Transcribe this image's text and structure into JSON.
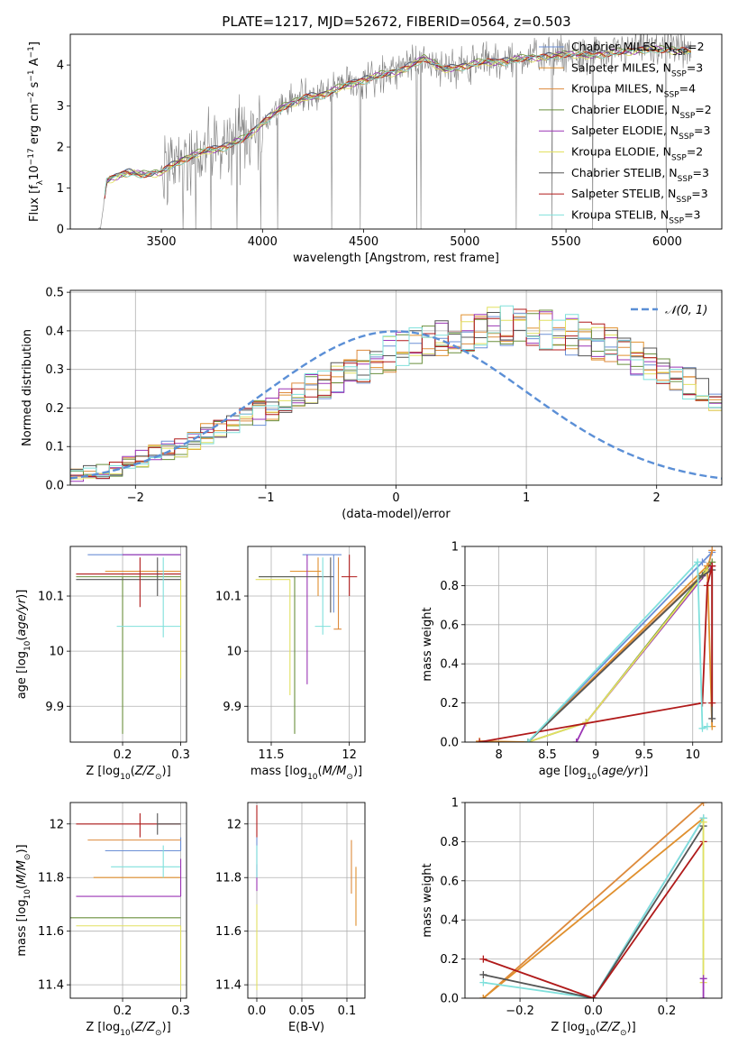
{
  "figure": {
    "title": "PLATE=1217, MJD=52672, FIBERID=0564, z=0.503",
    "colors": {
      "MILES_Chabrier": "#6b8fd6",
      "MILES_Salpeter": "#e0902e",
      "MILES_Kroupa": "#dd8a3c",
      "ELODIE_Chabrier": "#6a8f3c",
      "ELODIE_Salpeter": "#9b35b5",
      "ELODIE_Kroupa": "#e2e060",
      "STELIB_Chabrier": "#555555",
      "STELIB_Salpeter": "#b01a1a",
      "STELIB_Kroupa": "#80e0dc",
      "data": "#808080",
      "normal": "#5b8fd6"
    }
  },
  "chart_data": [
    {
      "type": "line",
      "id": "spectrum",
      "xlabel": "wavelength [Angstrom, rest frame]",
      "ylabel": "Flux [f_λ 10^{-17} erg cm^{-2} s^{-1} A^{-1}]",
      "xlim": [
        3050,
        6270
      ],
      "ylim": [
        0,
        4.75
      ],
      "xticks": [
        3500,
        4000,
        4500,
        5000,
        5500,
        6000
      ],
      "yticks": [
        0,
        1,
        2,
        3,
        4
      ],
      "grid": false,
      "legend_position": "top-right",
      "continuum_x": [
        3200,
        3230,
        3300,
        3350,
        3400,
        3500,
        3600,
        3700,
        3800,
        3900,
        4000,
        4100,
        4200,
        4300,
        4400,
        4500,
        4600,
        4700,
        4800,
        4900,
        5000,
        5100,
        5200,
        5300,
        5400,
        5500,
        5600,
        5700,
        5800,
        5900,
        6000,
        6100
      ],
      "continuum_y": [
        0,
        1.2,
        1.35,
        1.4,
        1.35,
        1.4,
        1.7,
        1.9,
        2.0,
        2.2,
        2.6,
        3.0,
        3.2,
        3.3,
        3.5,
        3.65,
        3.8,
        3.9,
        4.2,
        3.9,
        4.0,
        4.1,
        4.1,
        4.2,
        4.2,
        4.3,
        4.25,
        4.3,
        4.35,
        4.4,
        4.4,
        4.35
      ],
      "series": [
        {
          "name": "Chabrier MILES, N_SSP=2",
          "label": "Chabrier MILES, N",
          "nssp": "=2",
          "colorKey": "MILES_Chabrier"
        },
        {
          "name": "Salpeter MILES, N_SSP=3",
          "label": "Salpeter MILES, N",
          "nssp": "=3",
          "colorKey": "MILES_Salpeter"
        },
        {
          "name": "Kroupa MILES, N_SSP=4",
          "label": "Kroupa MILES, N",
          "nssp": "=4",
          "colorKey": "MILES_Kroupa"
        },
        {
          "name": "Chabrier ELODIE, N_SSP=2",
          "label": "Chabrier ELODIE, N",
          "nssp": "=2",
          "colorKey": "ELODIE_Chabrier"
        },
        {
          "name": "Salpeter ELODIE, N_SSP=3",
          "label": "Salpeter ELODIE, N",
          "nssp": "=3",
          "colorKey": "ELODIE_Salpeter"
        },
        {
          "name": "Kroupa ELODIE, N_SSP=2",
          "label": "Kroupa ELODIE, N",
          "nssp": "=2",
          "colorKey": "ELODIE_Kroupa"
        },
        {
          "name": "Chabrier STELIB, N_SSP=3",
          "label": "Chabrier STELIB, N",
          "nssp": "=3",
          "colorKey": "STELIB_Chabrier"
        },
        {
          "name": "Salpeter STELIB, N_SSP=3",
          "label": "Salpeter STELIB, N",
          "nssp": "=3",
          "colorKey": "STELIB_Salpeter"
        },
        {
          "name": "Kroupa STELIB, N_SSP=3",
          "label": "Kroupa STELIB, N",
          "nssp": "=3",
          "colorKey": "STELIB_Kroupa"
        }
      ]
    },
    {
      "type": "histogram",
      "id": "residuals",
      "xlabel": "(data-model)/error",
      "ylabel": "Normed distribution",
      "xlim": [
        -2.5,
        2.5
      ],
      "ylim": [
        0,
        0.505
      ],
      "xticks": [
        -2,
        -1,
        0,
        1,
        2
      ],
      "yticks": [
        0,
        0.1,
        0.2,
        0.3,
        0.4,
        0.5
      ],
      "grid": true,
      "bin_width": 0.1,
      "envelope": [
        0.02,
        0.02,
        0.025,
        0.03,
        0.035,
        0.045,
        0.06,
        0.07,
        0.08,
        0.09,
        0.1,
        0.11,
        0.13,
        0.14,
        0.155,
        0.17,
        0.19,
        0.2,
        0.22,
        0.23,
        0.25,
        0.26,
        0.28,
        0.3,
        0.31,
        0.32,
        0.34,
        0.35,
        0.36,
        0.375,
        0.38,
        0.39,
        0.4,
        0.4,
        0.41,
        0.41,
        0.41,
        0.405,
        0.4,
        0.395,
        0.39,
        0.38,
        0.37,
        0.36,
        0.34,
        0.33,
        0.31,
        0.3,
        0.28,
        0.265,
        0.25,
        0.23,
        0.21,
        0.2,
        0.18,
        0.165,
        0.15,
        0.13,
        0.12,
        0.1,
        0.09,
        0.08,
        0.07,
        0.06,
        0.05,
        0.04,
        0.035,
        0.03,
        0.03,
        0.025
      ],
      "normal_curve": {
        "name": "𝒩(0, 1)",
        "mean": 0,
        "sigma": 1
      }
    },
    {
      "type": "scatter",
      "id": "age_vs_Z",
      "xlabel": "Z [log10(Z/Z⊙)]",
      "ylabel": "age [log10(age/yr)]",
      "xlim": [
        0.11,
        0.31
      ],
      "ylim": [
        9.835,
        10.19
      ],
      "xticks": [
        0.2,
        0.3
      ],
      "yticks": [
        9.9,
        10.0,
        10.1
      ],
      "grid": true,
      "points": [
        {
          "colorKey": "MILES_Chabrier",
          "x": 0.22,
          "y": 10.175,
          "xlo": 0.14,
          "xhi": 0.3,
          "ylo": 10.175,
          "yhi": 10.175
        },
        {
          "colorKey": "MILES_Salpeter",
          "x": 0.23,
          "y": 10.145,
          "xlo": 0.17,
          "xhi": 0.3,
          "ylo": 10.145,
          "yhi": 10.145
        },
        {
          "colorKey": "ELODIE_Chabrier",
          "x": 0.2,
          "y": 10.135,
          "xlo": 0.12,
          "xhi": 0.3,
          "ylo": 9.85,
          "yhi": 10.135
        },
        {
          "colorKey": "ELODIE_Salpeter",
          "x": 0.28,
          "y": 10.175,
          "xlo": 0.2,
          "xhi": 0.3,
          "ylo": 10.175,
          "yhi": 10.175
        },
        {
          "colorKey": "ELODIE_Kroupa",
          "x": 0.3,
          "y": 10.13,
          "xlo": 0.3,
          "xhi": 0.3,
          "ylo": 9.95,
          "yhi": 10.13
        },
        {
          "colorKey": "STELIB_Chabrier",
          "x": 0.26,
          "y": 10.13,
          "xlo": 0.12,
          "xhi": 0.3,
          "ylo": 10.1,
          "yhi": 10.17
        },
        {
          "colorKey": "STELIB_Salpeter",
          "x": 0.23,
          "y": 10.14,
          "xlo": 0.12,
          "xhi": 0.3,
          "ylo": 10.08,
          "yhi": 10.17
        },
        {
          "colorKey": "STELIB_Kroupa",
          "x": 0.27,
          "y": 10.045,
          "xlo": 0.19,
          "xhi": 0.3,
          "ylo": 10.025,
          "yhi": 10.17
        }
      ]
    },
    {
      "type": "scatter",
      "id": "age_vs_mass",
      "xlabel": "mass [log10(M/M⊙)]",
      "ylabel": "",
      "xlim": [
        11.35,
        12.1
      ],
      "ylim": [
        9.835,
        10.19
      ],
      "xticks": [
        11.5,
        12.0
      ],
      "yticks": [
        9.9,
        10.0,
        10.1
      ],
      "grid": true,
      "points": [
        {
          "colorKey": "MILES_Chabrier",
          "x": 11.9,
          "y": 10.175,
          "xlo": 11.7,
          "xhi": 11.95,
          "ylo": 10.07,
          "yhi": 10.175
        },
        {
          "colorKey": "MILES_Salpeter",
          "x": 11.8,
          "y": 10.145,
          "xlo": 11.62,
          "xhi": 11.82,
          "ylo": 10.1,
          "yhi": 10.17
        },
        {
          "colorKey": "ELODIE_Chabrier",
          "x": 11.65,
          "y": 10.135,
          "xlo": 11.42,
          "xhi": 11.65,
          "ylo": 9.85,
          "yhi": 10.135
        },
        {
          "colorKey": "ELODIE_Salpeter",
          "x": 11.73,
          "y": 10.175,
          "xlo": 11.73,
          "xhi": 11.73,
          "ylo": 9.94,
          "yhi": 10.175
        },
        {
          "colorKey": "ELODIE_Kroupa",
          "x": 11.62,
          "y": 10.13,
          "xlo": 11.4,
          "xhi": 11.62,
          "ylo": 9.92,
          "yhi": 10.13
        },
        {
          "colorKey": "STELIB_Chabrier",
          "x": 11.88,
          "y": 10.135,
          "xlo": 11.42,
          "xhi": 11.9,
          "ylo": 10.07,
          "yhi": 10.17
        },
        {
          "colorKey": "STELIB_Salpeter",
          "x": 12.0,
          "y": 10.135,
          "xlo": 11.95,
          "xhi": 12.05,
          "ylo": 10.1,
          "yhi": 10.175
        },
        {
          "colorKey": "STELIB_Kroupa",
          "x": 11.83,
          "y": 10.045,
          "xlo": 11.78,
          "xhi": 11.88,
          "ylo": 10.03,
          "yhi": 10.17
        },
        {
          "colorKey": "MILES_Kroupa",
          "x": 11.93,
          "y": 10.04,
          "xlo": 11.9,
          "xhi": 11.95,
          "ylo": 10.04,
          "yhi": 10.17
        }
      ]
    },
    {
      "type": "line",
      "id": "massweight_vs_age",
      "xlabel": "age [log10(age/yr)]",
      "ylabel": "mass weight",
      "xlim": [
        7.65,
        10.3
      ],
      "ylim": [
        0,
        1.0
      ],
      "xticks": [
        8.0,
        8.5,
        9.0,
        9.5,
        10.0
      ],
      "yticks": [
        0,
        0.2,
        0.4,
        0.6,
        0.8,
        1.0
      ],
      "grid": true,
      "series": [
        {
          "colorKey": "MILES_Chabrier",
          "x": [
            8.3,
            10.1,
            10.2
          ],
          "y": [
            0,
            0.92,
            0.97
          ]
        },
        {
          "colorKey": "MILES_Salpeter",
          "x": [
            7.8,
            8.3,
            10.15,
            10.2
          ],
          "y": [
            0.005,
            0,
            0.9,
            0.08
          ]
        },
        {
          "colorKey": "MILES_Kroupa",
          "x": [
            8.3,
            10.15,
            10.2
          ],
          "y": [
            0,
            0.88,
            0.98
          ]
        },
        {
          "colorKey": "ELODIE_Chabrier",
          "x": [
            8.3,
            8.9,
            10.2
          ],
          "y": [
            0,
            0.1,
            0.92
          ]
        },
        {
          "colorKey": "ELODIE_Salpeter",
          "x": [
            8.8,
            8.9,
            10.2
          ],
          "y": [
            0,
            0.1,
            0.9
          ]
        },
        {
          "colorKey": "ELODIE_Kroupa",
          "x": [
            8.3,
            8.9,
            10.15
          ],
          "y": [
            0,
            0.1,
            0.88
          ]
        },
        {
          "colorKey": "STELIB_Chabrier",
          "x": [
            8.3,
            10.1,
            10.2,
            10.2
          ],
          "y": [
            0,
            0.85,
            0.88,
            0.12
          ]
        },
        {
          "colorKey": "STELIB_Salpeter",
          "x": [
            7.8,
            10.1,
            10.15,
            10.2,
            10.2
          ],
          "y": [
            0,
            0.2,
            0.8,
            0.9,
            0.2
          ]
        },
        {
          "colorKey": "STELIB_Kroupa",
          "x": [
            8.3,
            10.05,
            10.1,
            10.15
          ],
          "y": [
            0,
            0.92,
            0.07,
            0.08
          ]
        }
      ]
    },
    {
      "type": "scatter",
      "id": "mass_vs_Z",
      "xlabel": "Z [log10(Z/Z⊙)]",
      "ylabel": "mass [log10(M/M⊙)]",
      "xlim": [
        0.11,
        0.31
      ],
      "ylim": [
        11.35,
        12.08
      ],
      "xticks": [
        0.2,
        0.3
      ],
      "yticks": [
        11.4,
        11.6,
        11.8,
        12.0
      ],
      "grid": true,
      "points": [
        {
          "colorKey": "STELIB_Salpeter",
          "x": 0.23,
          "y": 12.0,
          "xlo": 0.12,
          "xhi": 0.3,
          "ylo": 11.95,
          "yhi": 12.04
        },
        {
          "colorKey": "STELIB_Chabrier",
          "x": 0.26,
          "y": 12.0,
          "xlo": 0.26,
          "xhi": 0.3,
          "ylo": 11.96,
          "yhi": 12.04
        },
        {
          "colorKey": "MILES_Chabrier",
          "x": 0.3,
          "y": 11.9,
          "xlo": 0.17,
          "xhi": 0.3,
          "ylo": 11.9,
          "yhi": 11.95
        },
        {
          "colorKey": "MILES_Salpeter",
          "x": 0.3,
          "y": 11.8,
          "xlo": 0.15,
          "xhi": 0.3,
          "ylo": 11.8,
          "yhi": 11.8
        },
        {
          "colorKey": "STELIB_Kroupa",
          "x": 0.27,
          "y": 11.84,
          "xlo": 0.18,
          "xhi": 0.3,
          "ylo": 11.8,
          "yhi": 11.92
        },
        {
          "colorKey": "ELODIE_Salpeter",
          "x": 0.3,
          "y": 11.73,
          "xlo": 0.12,
          "xhi": 0.3,
          "ylo": 11.73,
          "yhi": 11.87
        },
        {
          "colorKey": "ELODIE_Chabrier",
          "x": 0.3,
          "y": 11.65,
          "xlo": 0.11,
          "xhi": 0.3,
          "ylo": 11.65,
          "yhi": 11.65
        },
        {
          "colorKey": "ELODIE_Kroupa",
          "x": 0.3,
          "y": 11.62,
          "xlo": 0.12,
          "xhi": 0.3,
          "ylo": 11.38,
          "yhi": 11.62
        },
        {
          "colorKey": "MILES_Kroupa",
          "x": 0.3,
          "y": 11.94,
          "xlo": 0.14,
          "xhi": 0.3,
          "ylo": 11.94,
          "yhi": 11.94
        }
      ]
    },
    {
      "type": "scatter",
      "id": "mass_vs_EBV",
      "xlabel": "E(B-V)",
      "ylabel": "",
      "xlim": [
        -0.01,
        0.12
      ],
      "ylim": [
        11.35,
        12.08
      ],
      "xticks": [
        0.0,
        0.05,
        0.1
      ],
      "yticks": [
        11.4,
        11.6,
        11.8,
        12.0
      ],
      "grid": true,
      "points": [
        {
          "colorKey": "STELIB_Salpeter",
          "x": 0.0,
          "y": 12.0,
          "xlo": 0.0,
          "xhi": 0.0,
          "ylo": 11.95,
          "yhi": 12.07
        },
        {
          "colorKey": "MILES_Chabrier",
          "x": 0.0,
          "y": 11.9,
          "xlo": 0.0,
          "xhi": 0.0,
          "ylo": 11.8,
          "yhi": 11.95
        },
        {
          "colorKey": "ELODIE_Salpeter",
          "x": 0.0,
          "y": 11.8,
          "xlo": 0.0,
          "xhi": 0.0,
          "ylo": 11.75,
          "yhi": 11.85
        },
        {
          "colorKey": "ELODIE_Kroupa",
          "x": 0.0,
          "y": 11.6,
          "xlo": 0.0,
          "xhi": 0.0,
          "ylo": 11.38,
          "yhi": 11.7
        },
        {
          "colorKey": "STELIB_Kroupa",
          "x": 0.0,
          "y": 11.85,
          "xlo": 0.0,
          "xhi": 0.0,
          "ylo": 11.8,
          "yhi": 11.92
        },
        {
          "colorKey": "MILES_Salpeter",
          "x": 0.11,
          "y": 11.72,
          "xlo": 0.11,
          "xhi": 0.11,
          "ylo": 11.62,
          "yhi": 11.84
        },
        {
          "colorKey": "MILES_Kroupa",
          "x": 0.105,
          "y": 11.84,
          "xlo": 0.105,
          "xhi": 0.105,
          "ylo": 11.74,
          "yhi": 11.94
        }
      ]
    },
    {
      "type": "line",
      "id": "massweight_vs_Z",
      "xlabel": "Z [log10(Z/Z⊙)]",
      "ylabel": "mass weight",
      "xlim": [
        -0.35,
        0.35
      ],
      "ylim": [
        0,
        1.0
      ],
      "xticks": [
        -0.2,
        0.0,
        0.2
      ],
      "yticks": [
        0,
        0.2,
        0.4,
        0.6,
        0.8,
        1.0
      ],
      "grid": true,
      "series": [
        {
          "colorKey": "MILES_Kroupa",
          "x": [
            -0.3,
            0.3
          ],
          "y": [
            0,
            1.0
          ]
        },
        {
          "colorKey": "MILES_Salpeter",
          "x": [
            -0.3,
            0.3
          ],
          "y": [
            0,
            0.92
          ]
        },
        {
          "colorKey": "MILES_Chabrier",
          "x": [
            0.0,
            0.3
          ],
          "y": [
            0,
            0.92
          ]
        },
        {
          "colorKey": "STELIB_Kroupa",
          "x": [
            -0.3,
            0.0,
            0.3,
            0.3
          ],
          "y": [
            0.08,
            0,
            0.92,
            0.1
          ]
        },
        {
          "colorKey": "STELIB_Chabrier",
          "x": [
            -0.3,
            0.0,
            0.3
          ],
          "y": [
            0.12,
            0,
            0.88
          ]
        },
        {
          "colorKey": "STELIB_Salpeter",
          "x": [
            -0.3,
            0.0,
            0.3
          ],
          "y": [
            0.2,
            0,
            0.8
          ]
        },
        {
          "colorKey": "ELODIE_Kroupa",
          "x": [
            0.3,
            0.3
          ],
          "y": [
            0.9,
            0.08
          ]
        },
        {
          "colorKey": "ELODIE_Salpeter",
          "x": [
            0.3,
            0.3
          ],
          "y": [
            0.1,
            0.0
          ]
        }
      ]
    }
  ]
}
